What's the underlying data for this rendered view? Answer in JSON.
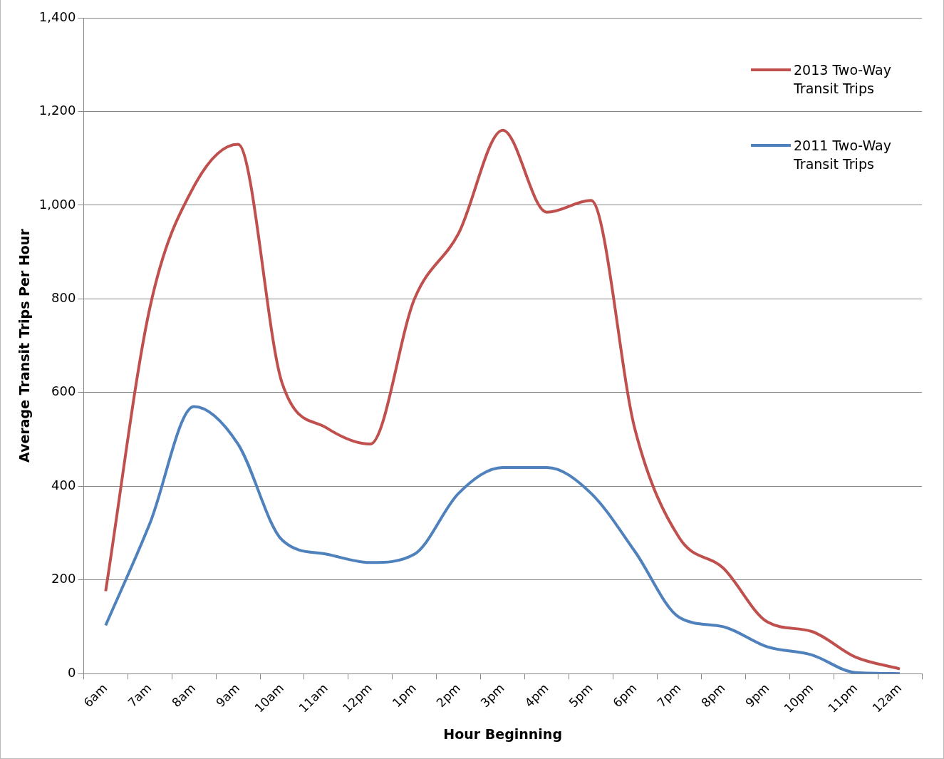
{
  "chart_data": {
    "type": "line",
    "xlabel": "Hour Beginning",
    "ylabel": "Average Transit Trips Per Hour",
    "categories": [
      "6am",
      "7am",
      "8am",
      "9am",
      "10am",
      "11am",
      "12pm",
      "1pm",
      "2pm",
      "3pm",
      "4pm",
      "5pm",
      "6pm",
      "7pm",
      "8pm",
      "9pm",
      "10pm",
      "11pm",
      "12am"
    ],
    "series": [
      {
        "name": "2013 Two-Way Transit Trips",
        "color": "#c0504d",
        "values": [
          176,
          780,
          1040,
          1130,
          620,
          525,
          490,
          800,
          940,
          1160,
          985,
          1010,
          520,
          290,
          225,
          110,
          90,
          35,
          10
        ]
      },
      {
        "name": "2011 Two-Way Transit Trips",
        "color": "#4f81bd",
        "values": [
          103,
          320,
          570,
          490,
          285,
          255,
          237,
          255,
          385,
          440,
          440,
          385,
          260,
          120,
          100,
          57,
          40,
          2,
          0
        ]
      }
    ],
    "ylim": [
      0,
      1400
    ],
    "yticks": [
      0,
      {
        "value": 200,
        "label": "200"
      },
      {
        "value": 400,
        "label": "400"
      },
      {
        "value": 600,
        "label": "600"
      },
      {
        "value": 800,
        "label": "800"
      },
      {
        "value": 1000,
        "label": "1,000"
      },
      {
        "value": 1200,
        "label": "1,200"
      },
      {
        "value": 1400,
        "label": "1,400"
      }
    ],
    "grid": "y",
    "legend": "top right"
  }
}
